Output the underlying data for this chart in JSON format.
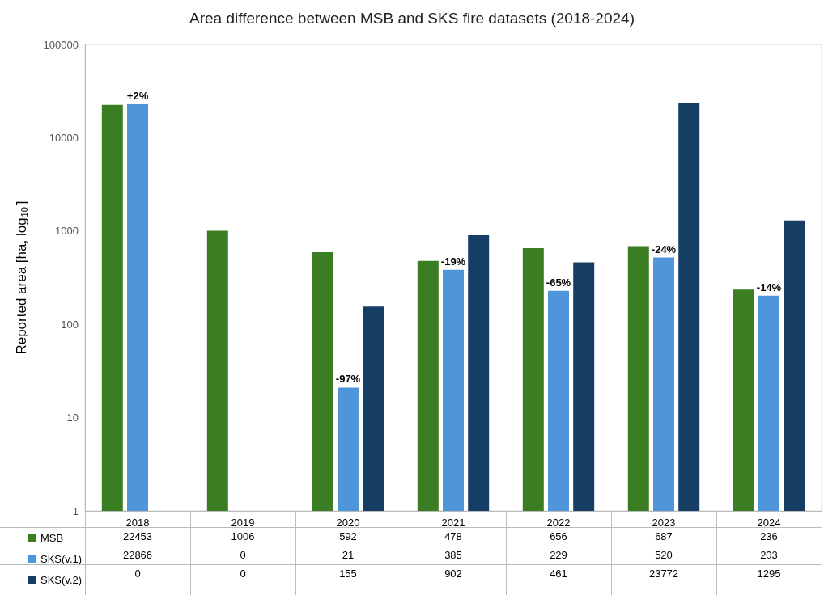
{
  "chart_data": {
    "type": "bar",
    "title": "Area difference between MSB and SKS fire datasets (2018-2024)",
    "ylabel": "Reported area [ha, log$_{10}$]",
    "categories": [
      "2018",
      "2019",
      "2020",
      "2021",
      "2022",
      "2023",
      "2024"
    ],
    "series": [
      {
        "name": "MSB",
        "color": "#3a7d22",
        "values": [
          22453,
          1006,
          592,
          478,
          656,
          687,
          236
        ],
        "value_labels": [
          "22453",
          "1006",
          "592",
          "478",
          "656",
          "687",
          "236"
        ]
      },
      {
        "name": "SKS(v.1)",
        "color": "#4e95d9",
        "values": [
          22866,
          null,
          21,
          385,
          229,
          520,
          203
        ],
        "value_labels": [
          "22866",
          "0",
          "21",
          "385",
          "229",
          "520",
          "203"
        ]
      },
      {
        "name": "SKS(v.2)",
        "color": "#163e64",
        "values": [
          null,
          null,
          155,
          902,
          461,
          23772,
          1295
        ],
        "value_labels": [
          "0",
          "0",
          "155",
          "902",
          "461",
          "23772",
          "1295"
        ]
      }
    ],
    "log": "y",
    "ylim": [
      1,
      100000
    ],
    "yticks": [
      1,
      10,
      100,
      1000,
      10000,
      100000
    ],
    "grid": false,
    "legend": "bottom left",
    "annotations": [
      {
        "text": "+2%",
        "x": "2018",
        "y": 22866
      },
      {
        "text": "-97%",
        "x": "2020",
        "y": 21
      },
      {
        "text": "-19%",
        "x": "2021",
        "y": 385
      },
      {
        "text": "-65%",
        "x": "2022",
        "y": 229
      },
      {
        "text": "-24%",
        "x": "2023",
        "y": 520
      },
      {
        "text": "-14%",
        "x": "2024",
        "y": 203
      }
    ]
  }
}
